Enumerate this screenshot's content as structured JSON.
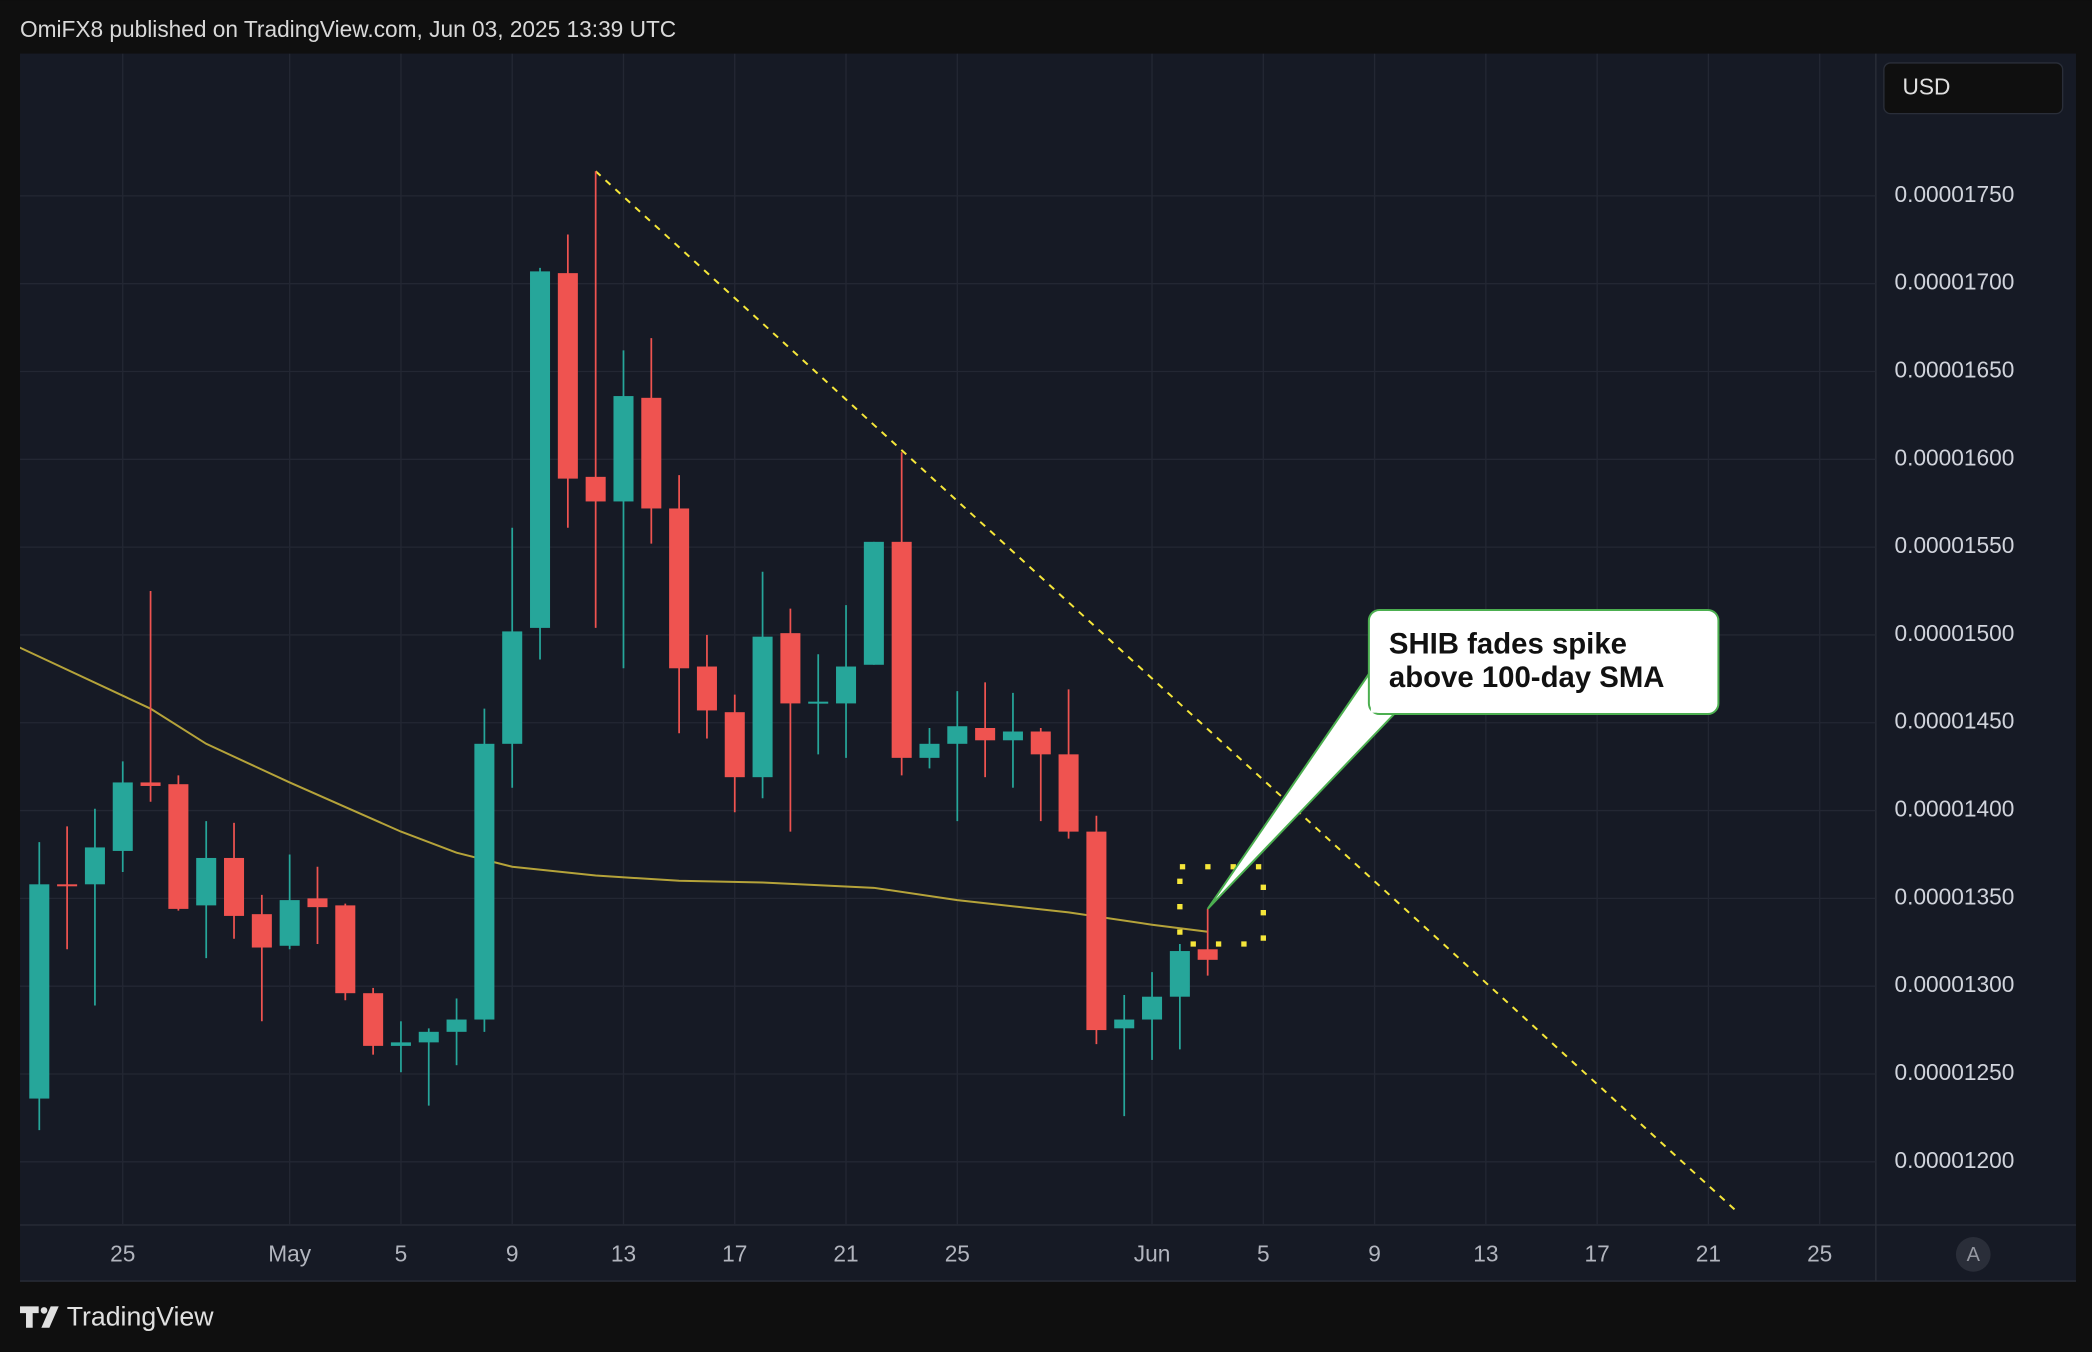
{
  "header": "OmiFX8 published on TradingView.com, Jun 03, 2025 13:39 UTC",
  "currency": "USD",
  "brand": "TradingView",
  "auto_button": "A",
  "chart_data": {
    "type": "candlestick",
    "up_color": "#26a69a",
    "down_color": "#ef5350",
    "grid": true,
    "xlim": [
      "2025-04-21",
      "2025-06-27"
    ],
    "ylim": [
      1.164e-05,
      1.831e-05
    ],
    "xticks": [
      {
        "value": "2025-04-25",
        "label": "25"
      },
      {
        "value": "2025-05-01",
        "label": "May"
      },
      {
        "value": "2025-05-05",
        "label": "5"
      },
      {
        "value": "2025-05-09",
        "label": "9"
      },
      {
        "value": "2025-05-13",
        "label": "13"
      },
      {
        "value": "2025-05-17",
        "label": "17"
      },
      {
        "value": "2025-05-21",
        "label": "21"
      },
      {
        "value": "2025-05-25",
        "label": "25"
      },
      {
        "value": "2025-06-01",
        "label": "Jun"
      },
      {
        "value": "2025-06-05",
        "label": "5"
      },
      {
        "value": "2025-06-09",
        "label": "9"
      },
      {
        "value": "2025-06-13",
        "label": "13"
      },
      {
        "value": "2025-06-17",
        "label": "17"
      },
      {
        "value": "2025-06-21",
        "label": "21"
      },
      {
        "value": "2025-06-25",
        "label": "25"
      }
    ],
    "yticks": [
      {
        "value": 1.2e-05,
        "label": "0.00001200"
      },
      {
        "value": 1.25e-05,
        "label": "0.00001250"
      },
      {
        "value": 1.3e-05,
        "label": "0.00001300"
      },
      {
        "value": 1.35e-05,
        "label": "0.00001350"
      },
      {
        "value": 1.4e-05,
        "label": "0.00001400"
      },
      {
        "value": 1.45e-05,
        "label": "0.00001450"
      },
      {
        "value": 1.5e-05,
        "label": "0.00001500"
      },
      {
        "value": 1.55e-05,
        "label": "0.00001550"
      },
      {
        "value": 1.6e-05,
        "label": "0.00001600"
      },
      {
        "value": 1.65e-05,
        "label": "0.00001650"
      },
      {
        "value": 1.7e-05,
        "label": "0.00001700"
      },
      {
        "value": 1.75e-05,
        "label": "0.00001750"
      }
    ],
    "x": [
      "2025-04-22",
      "2025-04-23",
      "2025-04-24",
      "2025-04-25",
      "2025-04-26",
      "2025-04-27",
      "2025-04-28",
      "2025-04-29",
      "2025-04-30",
      "2025-05-01",
      "2025-05-02",
      "2025-05-03",
      "2025-05-04",
      "2025-05-05",
      "2025-05-06",
      "2025-05-07",
      "2025-05-08",
      "2025-05-09",
      "2025-05-10",
      "2025-05-11",
      "2025-05-12",
      "2025-05-13",
      "2025-05-14",
      "2025-05-15",
      "2025-05-16",
      "2025-05-17",
      "2025-05-18",
      "2025-05-19",
      "2025-05-20",
      "2025-05-21",
      "2025-05-22",
      "2025-05-23",
      "2025-05-24",
      "2025-05-25",
      "2025-05-26",
      "2025-05-27",
      "2025-05-28",
      "2025-05-29",
      "2025-05-30",
      "2025-05-31",
      "2025-06-01",
      "2025-06-02",
      "2025-06-03"
    ],
    "open": [
      1.236e-05,
      1.358e-05,
      1.358e-05,
      1.377e-05,
      1.416e-05,
      1.415e-05,
      1.346e-05,
      1.373e-05,
      1.341e-05,
      1.323e-05,
      1.35e-05,
      1.346e-05,
      1.296e-05,
      1.266e-05,
      1.268e-05,
      1.274e-05,
      1.281e-05,
      1.438e-05,
      1.504e-05,
      1.706e-05,
      1.59e-05,
      1.576e-05,
      1.635e-05,
      1.572e-05,
      1.482e-05,
      1.456e-05,
      1.419e-05,
      1.501e-05,
      1.461e-05,
      1.461e-05,
      1.483e-05,
      1.553e-05,
      1.43e-05,
      1.438e-05,
      1.447e-05,
      1.44e-05,
      1.445e-05,
      1.432e-05,
      1.388e-05,
      1.276e-05,
      1.281e-05,
      1.294e-05,
      1.321e-05
    ],
    "high": [
      1.382e-05,
      1.391e-05,
      1.401e-05,
      1.428e-05,
      1.525e-05,
      1.42e-05,
      1.394e-05,
      1.393e-05,
      1.352e-05,
      1.375e-05,
      1.368e-05,
      1.347e-05,
      1.299e-05,
      1.28e-05,
      1.276e-05,
      1.293e-05,
      1.458e-05,
      1.561e-05,
      1.709e-05,
      1.728e-05,
      1.764e-05,
      1.662e-05,
      1.669e-05,
      1.591e-05,
      1.5e-05,
      1.466e-05,
      1.536e-05,
      1.515e-05,
      1.489e-05,
      1.517e-05,
      1.553e-05,
      1.604e-05,
      1.447e-05,
      1.468e-05,
      1.473e-05,
      1.467e-05,
      1.447e-05,
      1.469e-05,
      1.397e-05,
      1.295e-05,
      1.308e-05,
      1.324e-05,
      1.344e-05
    ],
    "low": [
      1.218e-05,
      1.321e-05,
      1.289e-05,
      1.365e-05,
      1.405e-05,
      1.343e-05,
      1.316e-05,
      1.327e-05,
      1.28e-05,
      1.321e-05,
      1.324e-05,
      1.292e-05,
      1.261e-05,
      1.251e-05,
      1.232e-05,
      1.255e-05,
      1.274e-05,
      1.413e-05,
      1.486e-05,
      1.561e-05,
      1.504e-05,
      1.481e-05,
      1.552e-05,
      1.444e-05,
      1.441e-05,
      1.399e-05,
      1.407e-05,
      1.388e-05,
      1.432e-05,
      1.43e-05,
      1.483e-05,
      1.42e-05,
      1.424e-05,
      1.394e-05,
      1.419e-05,
      1.413e-05,
      1.394e-05,
      1.384e-05,
      1.267e-05,
      1.226e-05,
      1.258e-05,
      1.264e-05,
      1.306e-05
    ],
    "close": [
      1.358e-05,
      1.357e-05,
      1.379e-05,
      1.416e-05,
      1.414e-05,
      1.344e-05,
      1.373e-05,
      1.34e-05,
      1.322e-05,
      1.349e-05,
      1.345e-05,
      1.296e-05,
      1.266e-05,
      1.268e-05,
      1.274e-05,
      1.281e-05,
      1.438e-05,
      1.502e-05,
      1.707e-05,
      1.589e-05,
      1.576e-05,
      1.636e-05,
      1.572e-05,
      1.481e-05,
      1.457e-05,
      1.419e-05,
      1.499e-05,
      1.461e-05,
      1.462e-05,
      1.482e-05,
      1.553e-05,
      1.43e-05,
      1.438e-05,
      1.448e-05,
      1.44e-05,
      1.445e-05,
      1.432e-05,
      1.388e-05,
      1.275e-05,
      1.281e-05,
      1.294e-05,
      1.32e-05,
      1.315e-05
    ],
    "sma": {
      "color": "#b5a33a",
      "x": [
        "2025-04-21",
        "2025-04-26",
        "2025-04-28",
        "2025-05-01",
        "2025-05-05",
        "2025-05-07",
        "2025-05-09",
        "2025-05-12",
        "2025-05-15",
        "2025-05-18",
        "2025-05-22",
        "2025-05-25",
        "2025-05-29",
        "2025-06-01",
        "2025-06-03"
      ],
      "values": [
        1.495e-05,
        1.458e-05,
        1.438e-05,
        1.416e-05,
        1.388e-05,
        1.376e-05,
        1.368e-05,
        1.363e-05,
        1.36e-05,
        1.359e-05,
        1.356e-05,
        1.349e-05,
        1.342e-05,
        1.335e-05,
        1.331e-05
      ]
    },
    "trendline": {
      "color": "#f5e63a",
      "x": [
        "2025-05-12",
        "2025-06-22"
      ],
      "values": [
        1.764e-05,
        1.172e-05
      ]
    },
    "highlight": {
      "color": "#f5e63a",
      "x": [
        "2025-06-02",
        "2025-06-05"
      ],
      "y": [
        1.324e-05,
        1.368e-05
      ]
    },
    "annotation": {
      "lines": [
        "SHIB fades spike",
        "above 100-day SMA"
      ],
      "border": "#4caf50"
    }
  }
}
